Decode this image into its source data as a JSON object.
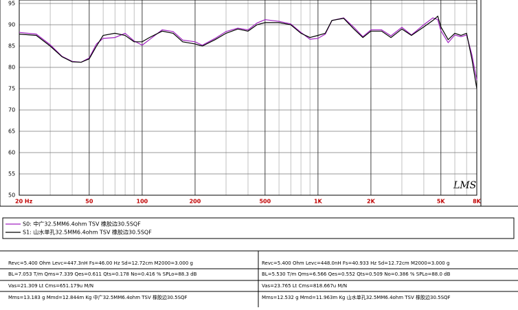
{
  "chart_data": {
    "type": "line",
    "watermark": "LMS",
    "xlim": [
      20,
      8000
    ],
    "log_x": true,
    "xticks": [
      {
        "value": 20,
        "label": "20 Hz"
      },
      50,
      100,
      200,
      500,
      {
        "value": 1000,
        "label": "1K"
      },
      {
        "value": 2000,
        "label": "2K"
      },
      {
        "value": 5000,
        "label": "5K"
      },
      {
        "value": 8000,
        "label": "8K"
      }
    ],
    "ylim": [
      50,
      95
    ],
    "yticks": [
      50,
      55,
      60,
      65,
      70,
      75,
      80,
      85,
      90,
      95
    ],
    "grid": true,
    "x": [
      20,
      25,
      30,
      35,
      40,
      45,
      50,
      55,
      60,
      70,
      80,
      90,
      100,
      110,
      130,
      150,
      170,
      200,
      220,
      260,
      300,
      350,
      400,
      450,
      500,
      600,
      700,
      800,
      900,
      1000,
      1100,
      1200,
      1400,
      1600,
      1800,
      2000,
      2300,
      2600,
      3000,
      3400,
      4000,
      4500,
      4800,
      5000,
      5500,
      6000,
      6500,
      7000,
      7500,
      8000
    ],
    "series": [
      {
        "name": "S0: 中广32.5MM6.4ohm TSV 橡胶边30.5SQF",
        "color": "#a020c0",
        "values": [
          88.2,
          87.8,
          85.3,
          82.6,
          81.4,
          81.2,
          82.2,
          85.5,
          86.8,
          87.0,
          88.0,
          86.2,
          85.2,
          86.5,
          88.8,
          88.4,
          86.4,
          86.0,
          85.2,
          86.8,
          88.4,
          89.2,
          88.8,
          90.4,
          91.2,
          90.8,
          90.2,
          88.2,
          86.6,
          86.8,
          87.8,
          91.0,
          91.6,
          89.4,
          87.2,
          88.8,
          88.8,
          87.4,
          89.4,
          87.6,
          90.0,
          91.6,
          91.2,
          88.6,
          85.8,
          87.6,
          87.2,
          87.6,
          83.0,
          77.0
        ]
      },
      {
        "name": "S1: 山水单孔32.5MM6.4ohm TSV 橡胶边30.5SQF",
        "color": "#000000",
        "values": [
          87.8,
          87.5,
          85.0,
          82.5,
          81.3,
          81.2,
          82.0,
          85.0,
          87.5,
          88.0,
          87.5,
          86.0,
          86.0,
          87.0,
          88.5,
          88.0,
          86.0,
          85.5,
          85.0,
          86.5,
          88.0,
          89.0,
          88.5,
          90.0,
          90.5,
          90.5,
          90.0,
          88.0,
          87.0,
          87.5,
          88.0,
          91.0,
          91.5,
          89.0,
          87.0,
          88.5,
          88.5,
          87.0,
          89.0,
          87.5,
          89.5,
          91.0,
          92.0,
          89.5,
          86.5,
          88.0,
          87.5,
          88.0,
          82.0,
          75.0
        ]
      }
    ]
  },
  "params": {
    "left": [
      "Revc=5.400 Ohm  Levc=447.3nH  Fs=46.00 Hz  Sd=12.72cm  M2000=3.000 g",
      "BL=7.053 T/m  Qms=7.339  Qes=0.611  Qts=0.178  No=0.416 %  SPLo=88.3 dB",
      "Vas=21.309 Lt  Cms=651.179u M/N",
      "Mms=13.183 g  Mmd=12.844m Kg     中广32.5MM6.4ohm TSV 橡胶边30.5SQF"
    ],
    "right": [
      "Revc=5.400 Ohm  Levc=448.0nH  Fs=40.933 Hz  Sd=12.72cm  M2000=3.000 g",
      "BL=5.530 T/m  Qms=6.566  Qes=0.552  Qts=0.509  No=0.386 %  SPLo=88.0 dB",
      "Vas=23.765 Lt  Cms=818.667u M/N",
      "Mms=12.532 g  Mmd=11.963m Kg     山水单孔32.5MM6.4ohm TSV 橡胶边30.5SQF"
    ]
  }
}
